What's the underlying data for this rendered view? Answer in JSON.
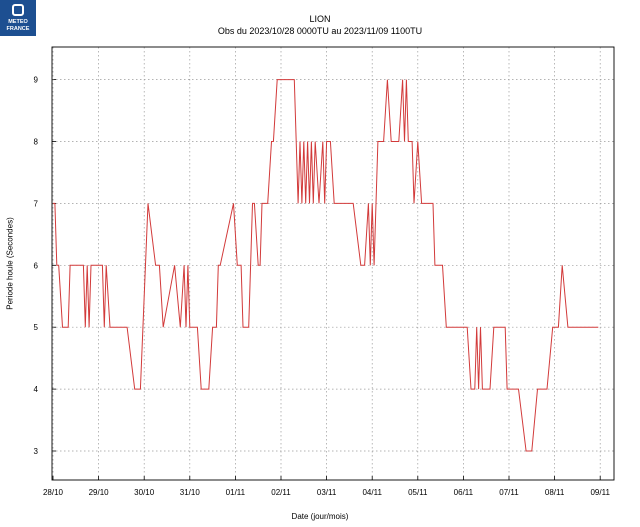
{
  "logo": {
    "line1": "METEO",
    "line2": "FRANCE",
    "color": "#1d4f91"
  },
  "chart_data": {
    "type": "line",
    "title": "LION",
    "subtitle": "Obs du 2023/10/28 0000TU au 2023/11/09 1100TU",
    "xlabel": "Date (jour/mois)",
    "ylabel": "Periode houle (Secondes)",
    "x_ticks": [
      "28/10",
      "29/10",
      "30/10",
      "31/10",
      "01/11",
      "02/11",
      "03/11",
      "04/11",
      "05/11",
      "06/11",
      "07/11",
      "08/11",
      "09/11"
    ],
    "y_ticks": [
      3,
      4,
      5,
      6,
      7,
      8,
      9
    ],
    "ylim": [
      2.5,
      9.5
    ],
    "x_unit": "hours since 2023/10/28 00TU",
    "xlim": [
      0,
      287
    ],
    "grid": true,
    "line_color": "#d23a3a",
    "series": [
      {
        "x": [
          0,
          1,
          2,
          3,
          5,
          6,
          7,
          8,
          9,
          10,
          14,
          16,
          17,
          18,
          19,
          20,
          22,
          23,
          25,
          26,
          27,
          28,
          30,
          32,
          34,
          35,
          36,
          37,
          39,
          43,
          46,
          50,
          54,
          56,
          58,
          64,
          67,
          69,
          70,
          71,
          72,
          73,
          74,
          76,
          78,
          79,
          80,
          82,
          84,
          86,
          87,
          88,
          95,
          97,
          99,
          100,
          102,
          103,
          105,
          106,
          108,
          109,
          110,
          113,
          115,
          116,
          118,
          121,
          122,
          124,
          125,
          126,
          127,
          128,
          129,
          130,
          131,
          132,
          133,
          134,
          135,
          136,
          137,
          138,
          140,
          142,
          143,
          144,
          146,
          148,
          150,
          151,
          152,
          153,
          155,
          156,
          158,
          162,
          164,
          166,
          167,
          168,
          169,
          170,
          171,
          172,
          173,
          174,
          176,
          178,
          180,
          182,
          184,
          185,
          186,
          187,
          188,
          189,
          190,
          192,
          194,
          195,
          196,
          198,
          200,
          201,
          202,
          205,
          207,
          209,
          211,
          212,
          214,
          218,
          220,
          221,
          222,
          223,
          224,
          225,
          226,
          227,
          228,
          229,
          230,
          232,
          235,
          238,
          239,
          240,
          242,
          245,
          249,
          252,
          255,
          260,
          263,
          266,
          268,
          271,
          274,
          277,
          281,
          283,
          287
        ],
        "values": [
          7,
          7,
          6,
          6,
          5,
          5,
          5,
          5,
          6,
          6,
          6,
          6,
          5,
          6,
          5,
          6,
          6,
          6,
          6,
          6,
          5,
          6,
          5,
          5,
          5,
          5,
          5,
          5,
          5,
          4,
          4,
          7,
          6,
          6,
          5,
          6,
          5,
          6,
          5,
          6,
          5,
          5,
          5,
          5,
          4,
          4,
          4,
          4,
          5,
          5,
          6,
          6,
          7,
          6,
          6,
          5,
          5,
          5,
          7,
          7,
          6,
          6,
          7,
          7,
          8,
          8,
          9,
          9,
          9,
          9,
          9,
          9,
          9,
          8,
          7,
          8,
          7,
          8,
          7,
          8,
          7,
          8,
          7,
          8,
          7,
          8,
          7,
          8,
          8,
          7,
          7,
          7,
          7,
          7,
          7,
          7,
          7,
          6,
          6,
          7,
          6,
          7,
          6,
          7,
          8,
          8,
          8,
          8,
          9,
          8,
          8,
          8,
          9,
          8,
          9,
          8,
          8,
          8,
          7,
          8,
          7,
          7,
          7,
          7,
          7,
          6,
          6,
          6,
          5,
          5,
          5,
          5,
          5,
          5,
          4,
          4,
          4,
          5,
          4,
          5,
          4,
          4,
          4,
          4,
          4,
          5,
          5,
          5,
          4,
          4,
          4,
          4,
          3,
          3,
          4,
          4,
          5,
          5,
          6,
          5,
          5,
          5,
          5,
          5,
          5
        ]
      }
    ]
  }
}
